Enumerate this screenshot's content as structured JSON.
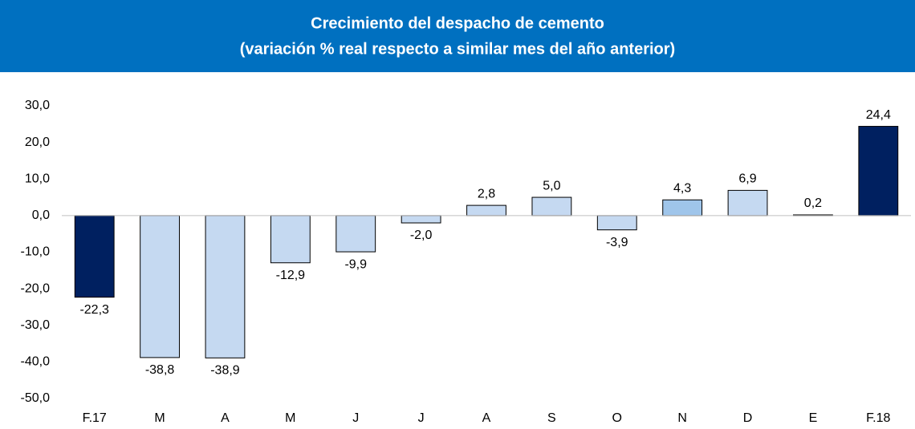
{
  "chart_data": {
    "type": "bar",
    "title": [
      "Crecimiento del despacho de cemento",
      "(variación % real respecto a similar mes del año anterior)"
    ],
    "categories": [
      "F.17",
      "M",
      "A",
      "M",
      "J",
      "J",
      "A",
      "S",
      "O",
      "N",
      "D",
      "E",
      "F.18"
    ],
    "values": [
      -22.3,
      -38.8,
      -38.9,
      -12.9,
      -9.9,
      -2.0,
      2.8,
      5.0,
      -3.9,
      4.3,
      6.9,
      0.2,
      24.4
    ],
    "value_labels": [
      "-22,3",
      "-38,8",
      "-38,9",
      "-12,9",
      "-9,9",
      "-2,0",
      "2,8",
      "5,0",
      "-3,9",
      "4,3",
      "6,9",
      "0,2",
      "24,4"
    ],
    "colors": [
      "#002060",
      "#c5d9f1",
      "#c5d9f1",
      "#c5d9f1",
      "#c5d9f1",
      "#c5d9f1",
      "#c5d9f1",
      "#c5d9f1",
      "#c5d9f1",
      "#9fc5ea",
      "#c5d9f1",
      "#c5d9f1",
      "#002060"
    ],
    "ylim": [
      -50,
      30
    ],
    "yticks": [
      {
        "value": -50,
        "label": "-50,0"
      },
      {
        "value": -40,
        "label": "-40,0"
      },
      {
        "value": -30,
        "label": "-30,0"
      },
      {
        "value": -20,
        "label": "-20,0"
      },
      {
        "value": -10,
        "label": "-10,0"
      },
      {
        "value": 0,
        "label": "0,0"
      },
      {
        "value": 10,
        "label": "10,0"
      },
      {
        "value": 20,
        "label": "20,0"
      },
      {
        "value": 30,
        "label": "30,0"
      }
    ],
    "title_background": "#0070c0"
  }
}
